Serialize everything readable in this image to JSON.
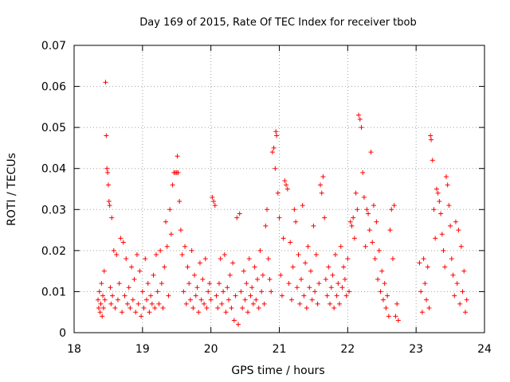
{
  "chart_data": {
    "type": "scatter",
    "title": "Day 169 of 2015, Rate Of TEC Index for receiver tbob",
    "xlabel": "GPS time / hours",
    "ylabel": "ROTI / TECUs",
    "xlim": [
      18,
      24
    ],
    "ylim": [
      0,
      0.07
    ],
    "xticks": [
      18,
      19,
      20,
      21,
      22,
      23,
      24
    ],
    "xtick_labels": [
      "18",
      "19",
      "20",
      "21",
      "22",
      "23",
      "24"
    ],
    "yticks": [
      0,
      0.01,
      0.02,
      0.03,
      0.04,
      0.05,
      0.06,
      0.07
    ],
    "ytick_labels": [
      "0",
      "0.01",
      "0.02",
      "0.03",
      "0.04",
      "0.05",
      "0.06",
      "0.07"
    ],
    "grid": true,
    "marker": "plus",
    "color": "#ff0000",
    "series": [
      {
        "name": "tbob",
        "points": [
          [
            18.35,
            0.008
          ],
          [
            18.36,
            0.006
          ],
          [
            18.37,
            0.01
          ],
          [
            18.38,
            0.005
          ],
          [
            18.39,
            0.007
          ],
          [
            18.4,
            0.012
          ],
          [
            18.41,
            0.004
          ],
          [
            18.42,
            0.009
          ],
          [
            18.43,
            0.006
          ],
          [
            18.44,
            0.015
          ],
          [
            18.45,
            0.008
          ],
          [
            18.46,
            0.061
          ],
          [
            18.47,
            0.048
          ],
          [
            18.48,
            0.04
          ],
          [
            18.49,
            0.039
          ],
          [
            18.5,
            0.036
          ],
          [
            18.51,
            0.032
          ],
          [
            18.52,
            0.031
          ],
          [
            18.53,
            0.011
          ],
          [
            18.54,
            0.007
          ],
          [
            18.55,
            0.028
          ],
          [
            18.56,
            0.009
          ],
          [
            18.58,
            0.02
          ],
          [
            18.6,
            0.006
          ],
          [
            18.62,
            0.019
          ],
          [
            18.64,
            0.008
          ],
          [
            18.66,
            0.012
          ],
          [
            18.68,
            0.023
          ],
          [
            18.7,
            0.005
          ],
          [
            18.72,
            0.022
          ],
          [
            18.74,
            0.009
          ],
          [
            18.76,
            0.018
          ],
          [
            18.78,
            0.007
          ],
          [
            18.8,
            0.011
          ],
          [
            18.82,
            0.006
          ],
          [
            18.84,
            0.016
          ],
          [
            18.86,
            0.008
          ],
          [
            18.88,
            0.013
          ],
          [
            18.9,
            0.005
          ],
          [
            18.92,
            0.019
          ],
          [
            18.94,
            0.007
          ],
          [
            18.96,
            0.015
          ],
          [
            18.98,
            0.004
          ],
          [
            19.0,
            0.01
          ],
          [
            19.02,
            0.006
          ],
          [
            19.04,
            0.018
          ],
          [
            19.06,
            0.008
          ],
          [
            19.08,
            0.012
          ],
          [
            19.1,
            0.005
          ],
          [
            19.12,
            0.009
          ],
          [
            19.14,
            0.007
          ],
          [
            19.16,
            0.014
          ],
          [
            19.18,
            0.006
          ],
          [
            19.2,
            0.019
          ],
          [
            19.22,
            0.01
          ],
          [
            19.24,
            0.007
          ],
          [
            19.26,
            0.02
          ],
          [
            19.28,
            0.012
          ],
          [
            19.3,
            0.006
          ],
          [
            19.32,
            0.016
          ],
          [
            19.34,
            0.027
          ],
          [
            19.36,
            0.021
          ],
          [
            19.38,
            0.009
          ],
          [
            19.4,
            0.03
          ],
          [
            19.42,
            0.024
          ],
          [
            19.44,
            0.036
          ],
          [
            19.46,
            0.039
          ],
          [
            19.48,
            0.039
          ],
          [
            19.5,
            0.039
          ],
          [
            19.51,
            0.043
          ],
          [
            19.52,
            0.039
          ],
          [
            19.54,
            0.032
          ],
          [
            19.56,
            0.025
          ],
          [
            19.58,
            0.019
          ],
          [
            19.6,
            0.01
          ],
          [
            19.62,
            0.021
          ],
          [
            19.64,
            0.007
          ],
          [
            19.66,
            0.016
          ],
          [
            19.68,
            0.012
          ],
          [
            19.7,
            0.008
          ],
          [
            19.72,
            0.02
          ],
          [
            19.74,
            0.006
          ],
          [
            19.76,
            0.014
          ],
          [
            19.78,
            0.009
          ],
          [
            19.8,
            0.011
          ],
          [
            19.82,
            0.005
          ],
          [
            19.84,
            0.017
          ],
          [
            19.86,
            0.008
          ],
          [
            19.88,
            0.013
          ],
          [
            19.9,
            0.007
          ],
          [
            19.92,
            0.018
          ],
          [
            19.94,
            0.006
          ],
          [
            19.96,
            0.01
          ],
          [
            19.98,
            0.012
          ],
          [
            20.0,
            0.008
          ],
          [
            20.02,
            0.033
          ],
          [
            20.04,
            0.032
          ],
          [
            20.06,
            0.031
          ],
          [
            20.08,
            0.009
          ],
          [
            20.1,
            0.006
          ],
          [
            20.12,
            0.012
          ],
          [
            20.14,
            0.018
          ],
          [
            20.16,
            0.007
          ],
          [
            20.18,
            0.01
          ],
          [
            20.2,
            0.019
          ],
          [
            20.22,
            0.005
          ],
          [
            20.24,
            0.011
          ],
          [
            20.26,
            0.008
          ],
          [
            20.28,
            0.014
          ],
          [
            20.3,
            0.006
          ],
          [
            20.32,
            0.017
          ],
          [
            20.34,
            0.003
          ],
          [
            20.36,
            0.009
          ],
          [
            20.38,
            0.028
          ],
          [
            20.4,
            0.002
          ],
          [
            20.42,
            0.029
          ],
          [
            20.44,
            0.01
          ],
          [
            20.46,
            0.006
          ],
          [
            20.48,
            0.015
          ],
          [
            20.5,
            0.008
          ],
          [
            20.52,
            0.012
          ],
          [
            20.54,
            0.005
          ],
          [
            20.56,
            0.018
          ],
          [
            20.58,
            0.009
          ],
          [
            20.6,
            0.011
          ],
          [
            20.62,
            0.007
          ],
          [
            20.64,
            0.016
          ],
          [
            20.66,
            0.008
          ],
          [
            20.68,
            0.013
          ],
          [
            20.7,
            0.006
          ],
          [
            20.72,
            0.02
          ],
          [
            20.74,
            0.01
          ],
          [
            20.76,
            0.014
          ],
          [
            20.78,
            0.007
          ],
          [
            20.8,
            0.026
          ],
          [
            20.82,
            0.03
          ],
          [
            20.84,
            0.018
          ],
          [
            20.86,
            0.013
          ],
          [
            20.88,
            0.01
          ],
          [
            20.9,
            0.044
          ],
          [
            20.92,
            0.045
          ],
          [
            20.94,
            0.04
          ],
          [
            20.95,
            0.049
          ],
          [
            20.96,
            0.048
          ],
          [
            20.98,
            0.034
          ],
          [
            21.0,
            0.028
          ],
          [
            21.02,
            0.014
          ],
          [
            21.04,
            0.009
          ],
          [
            21.06,
            0.023
          ],
          [
            21.08,
            0.037
          ],
          [
            21.1,
            0.036
          ],
          [
            21.12,
            0.035
          ],
          [
            21.14,
            0.012
          ],
          [
            21.16,
            0.022
          ],
          [
            21.18,
            0.008
          ],
          [
            21.2,
            0.016
          ],
          [
            21.22,
            0.03
          ],
          [
            21.24,
            0.027
          ],
          [
            21.26,
            0.011
          ],
          [
            21.28,
            0.019
          ],
          [
            21.3,
            0.007
          ],
          [
            21.32,
            0.013
          ],
          [
            21.34,
            0.031
          ],
          [
            21.36,
            0.009
          ],
          [
            21.38,
            0.017
          ],
          [
            21.4,
            0.006
          ],
          [
            21.42,
            0.021
          ],
          [
            21.44,
            0.011
          ],
          [
            21.46,
            0.015
          ],
          [
            21.48,
            0.008
          ],
          [
            21.5,
            0.026
          ],
          [
            21.52,
            0.01
          ],
          [
            21.54,
            0.019
          ],
          [
            21.56,
            0.007
          ],
          [
            21.58,
            0.012
          ],
          [
            21.6,
            0.036
          ],
          [
            21.62,
            0.034
          ],
          [
            21.64,
            0.038
          ],
          [
            21.66,
            0.028
          ],
          [
            21.68,
            0.013
          ],
          [
            21.7,
            0.009
          ],
          [
            21.72,
            0.016
          ],
          [
            21.74,
            0.007
          ],
          [
            21.76,
            0.011
          ],
          [
            21.78,
            0.014
          ],
          [
            21.8,
            0.006
          ],
          [
            21.82,
            0.019
          ],
          [
            21.84,
            0.009
          ],
          [
            21.86,
            0.012
          ],
          [
            21.88,
            0.007
          ],
          [
            21.9,
            0.021
          ],
          [
            21.92,
            0.011
          ],
          [
            21.94,
            0.016
          ],
          [
            21.96,
            0.013
          ],
          [
            21.98,
            0.009
          ],
          [
            22.0,
            0.018
          ],
          [
            22.02,
            0.01
          ],
          [
            22.04,
            0.027
          ],
          [
            22.06,
            0.026
          ],
          [
            22.08,
            0.028
          ],
          [
            22.1,
            0.023
          ],
          [
            22.12,
            0.034
          ],
          [
            22.14,
            0.03
          ],
          [
            22.16,
            0.053
          ],
          [
            22.18,
            0.052
          ],
          [
            22.2,
            0.05
          ],
          [
            22.22,
            0.039
          ],
          [
            22.24,
            0.033
          ],
          [
            22.26,
            0.021
          ],
          [
            22.28,
            0.03
          ],
          [
            22.3,
            0.029
          ],
          [
            22.32,
            0.025
          ],
          [
            22.34,
            0.044
          ],
          [
            22.36,
            0.022
          ],
          [
            22.38,
            0.031
          ],
          [
            22.4,
            0.018
          ],
          [
            22.42,
            0.027
          ],
          [
            22.44,
            0.013
          ],
          [
            22.46,
            0.02
          ],
          [
            22.48,
            0.01
          ],
          [
            22.5,
            0.015
          ],
          [
            22.52,
            0.008
          ],
          [
            22.54,
            0.012
          ],
          [
            22.56,
            0.006
          ],
          [
            22.58,
            0.009
          ],
          [
            22.6,
            0.004
          ],
          [
            22.62,
            0.025
          ],
          [
            22.64,
            0.03
          ],
          [
            22.66,
            0.018
          ],
          [
            22.68,
            0.031
          ],
          [
            22.7,
            0.004
          ],
          [
            22.72,
            0.007
          ],
          [
            22.74,
            0.003
          ],
          [
            23.05,
            0.017
          ],
          [
            23.07,
            0.01
          ],
          [
            23.09,
            0.005
          ],
          [
            23.11,
            0.018
          ],
          [
            23.13,
            0.012
          ],
          [
            23.15,
            0.008
          ],
          [
            23.17,
            0.016
          ],
          [
            23.19,
            0.006
          ],
          [
            23.21,
            0.048
          ],
          [
            23.22,
            0.047
          ],
          [
            23.24,
            0.042
          ],
          [
            23.26,
            0.03
          ],
          [
            23.28,
            0.023
          ],
          [
            23.3,
            0.035
          ],
          [
            23.32,
            0.034
          ],
          [
            23.34,
            0.032
          ],
          [
            23.36,
            0.029
          ],
          [
            23.38,
            0.024
          ],
          [
            23.4,
            0.02
          ],
          [
            23.42,
            0.016
          ],
          [
            23.44,
            0.038
          ],
          [
            23.46,
            0.036
          ],
          [
            23.48,
            0.031
          ],
          [
            23.5,
            0.026
          ],
          [
            23.52,
            0.018
          ],
          [
            23.54,
            0.014
          ],
          [
            23.56,
            0.009
          ],
          [
            23.58,
            0.027
          ],
          [
            23.6,
            0.012
          ],
          [
            23.62,
            0.025
          ],
          [
            23.64,
            0.007
          ],
          [
            23.66,
            0.021
          ],
          [
            23.68,
            0.01
          ],
          [
            23.7,
            0.015
          ],
          [
            23.72,
            0.005
          ],
          [
            23.74,
            0.008
          ]
        ]
      }
    ]
  }
}
